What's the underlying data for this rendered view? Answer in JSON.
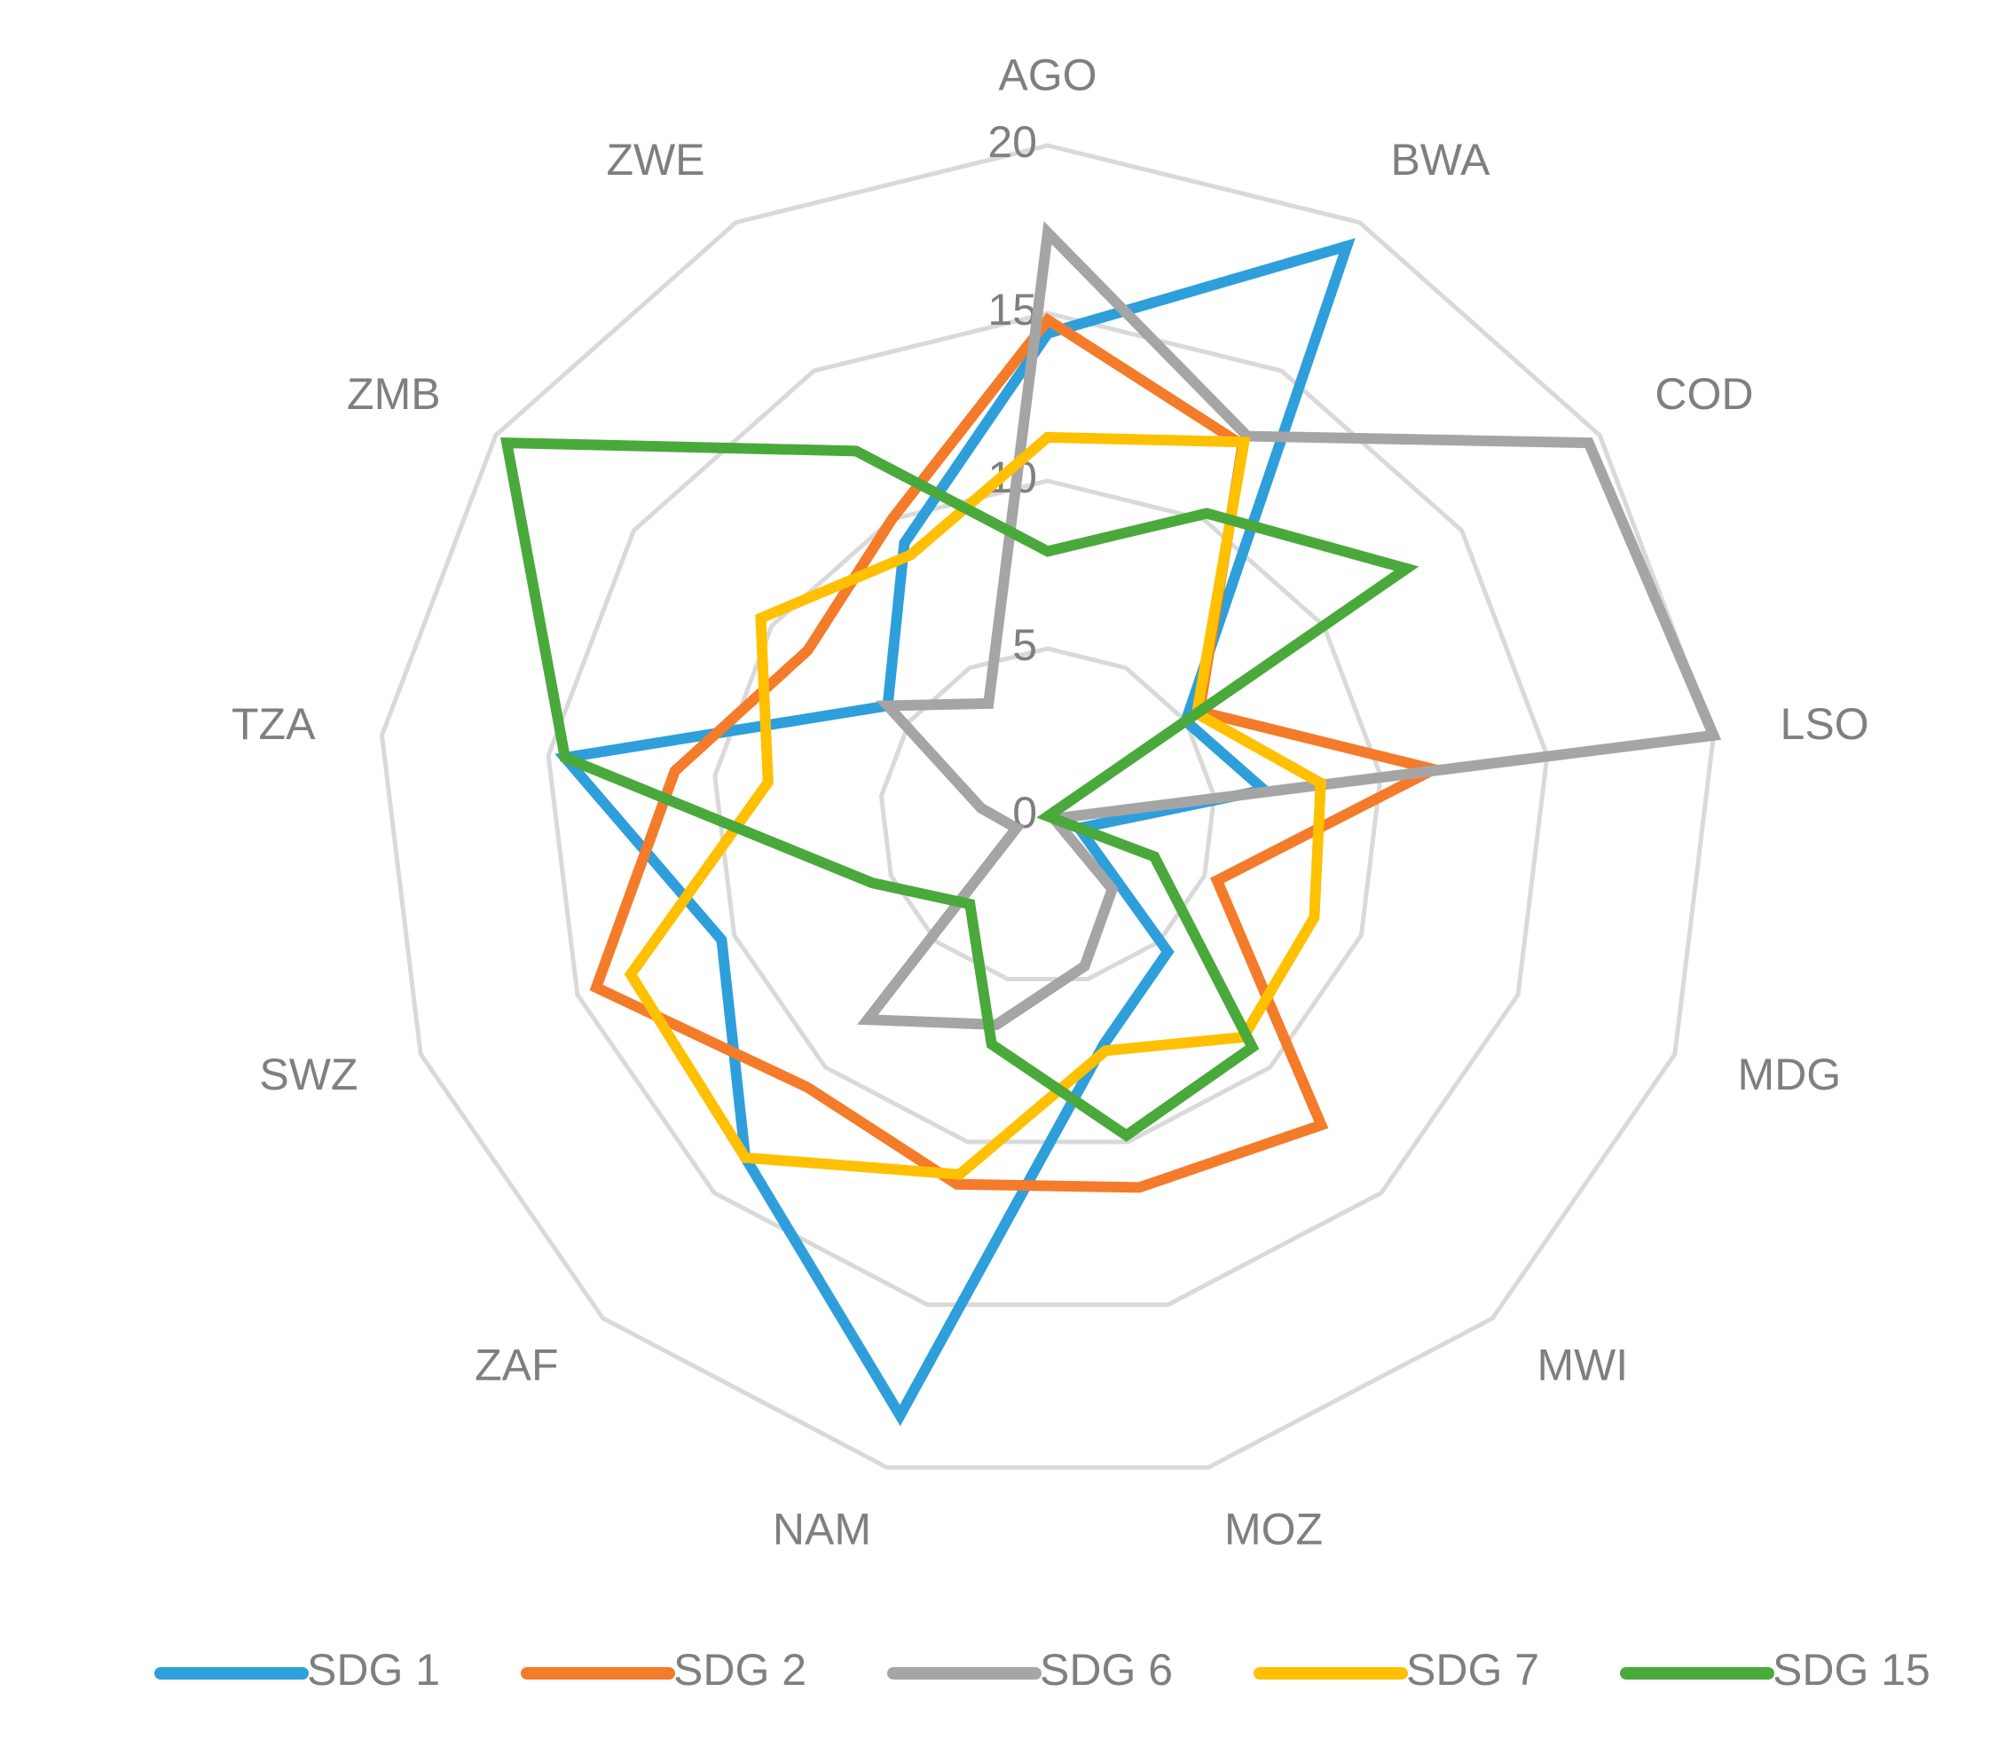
{
  "chart_data": {
    "type": "radar",
    "categories": [
      "AGO",
      "BWA",
      "COD",
      "LSO",
      "MDG",
      "MWI",
      "MOZ",
      "NAM",
      "ZAF",
      "SWZ",
      "TZA",
      "ZMB",
      "ZWE"
    ],
    "series": [
      {
        "name": "SDG 1",
        "color": "#2e9fda",
        "values": [
          14.4,
          19.2,
          5,
          6.5,
          1,
          5.4,
          7,
          18.4,
          13.6,
          10.4,
          14.5,
          5.8,
          9.2
        ]
      },
      {
        "name": "SDG 2",
        "color": "#f47b2a",
        "values": [
          14.8,
          12.5,
          5.5,
          11.6,
          5.4,
          12.3,
          11.4,
          11.3,
          10.8,
          14.4,
          11.2,
          8.7,
          10
        ]
      },
      {
        "name": "SDG 6",
        "color": "#a5a5a5",
        "values": [
          17.4,
          12.8,
          19.6,
          20,
          0.2,
          2.9,
          4.6,
          6.4,
          8.1,
          1,
          2,
          5.8,
          3.8
        ]
      },
      {
        "name": "SDG 7",
        "color": "#ffc000",
        "values": [
          11.3,
          12.6,
          5.4,
          8.2,
          8.5,
          8.8,
          7.2,
          11,
          13.6,
          13.3,
          8.4,
          10.4,
          8.8
        ]
      },
      {
        "name": "SDG 15",
        "color": "#4aa93b",
        "values": [
          7.9,
          10.2,
          13,
          0,
          3.4,
          9.2,
          9.8,
          7,
          3.5,
          5.6,
          14.5,
          19.6,
          12.3
        ]
      }
    ],
    "ylim": [
      0,
      20
    ],
    "yticks": [
      0,
      5,
      10,
      15,
      20
    ],
    "grid": true,
    "legend": "bottom"
  }
}
